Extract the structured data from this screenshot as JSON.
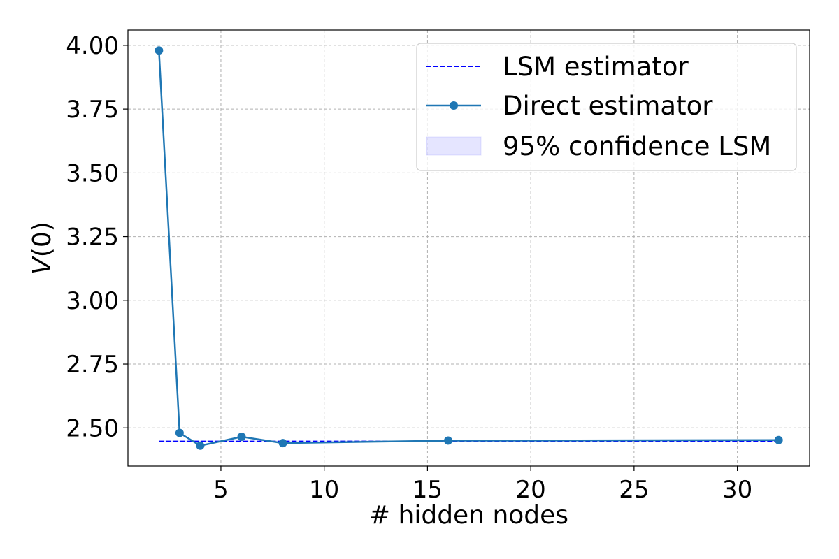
{
  "chart_data": {
    "type": "line",
    "xlabel": "# hidden nodes",
    "ylabel": "V(0)",
    "xlim": [
      0.5,
      33.5
    ],
    "ylim": [
      2.35,
      4.06
    ],
    "x_ticks": [
      "5",
      "10",
      "15",
      "20",
      "25",
      "30"
    ],
    "y_ticks": [
      "2.50",
      "2.75",
      "3.00",
      "3.25",
      "3.50",
      "3.75",
      "4.00"
    ],
    "grid": true,
    "legend_position": "upper-right",
    "series": [
      {
        "name": "LSM estimator",
        "style": "dashed",
        "color": "#0000ff",
        "x": [
          2,
          32
        ],
        "y": [
          2.447,
          2.447
        ]
      },
      {
        "name": "Direct estimator",
        "style": "solid-markers",
        "color": "#1f77b4",
        "x": [
          2,
          3,
          4,
          6,
          8,
          16,
          32
        ],
        "y": [
          3.98,
          2.48,
          2.43,
          2.465,
          2.44,
          2.45,
          2.452
        ]
      },
      {
        "name": "95% confidence LSM",
        "style": "band",
        "color": "#0000ff",
        "x": [
          2,
          32
        ],
        "y_low": [
          2.444,
          2.444
        ],
        "y_high": [
          2.45,
          2.45
        ]
      }
    ]
  }
}
